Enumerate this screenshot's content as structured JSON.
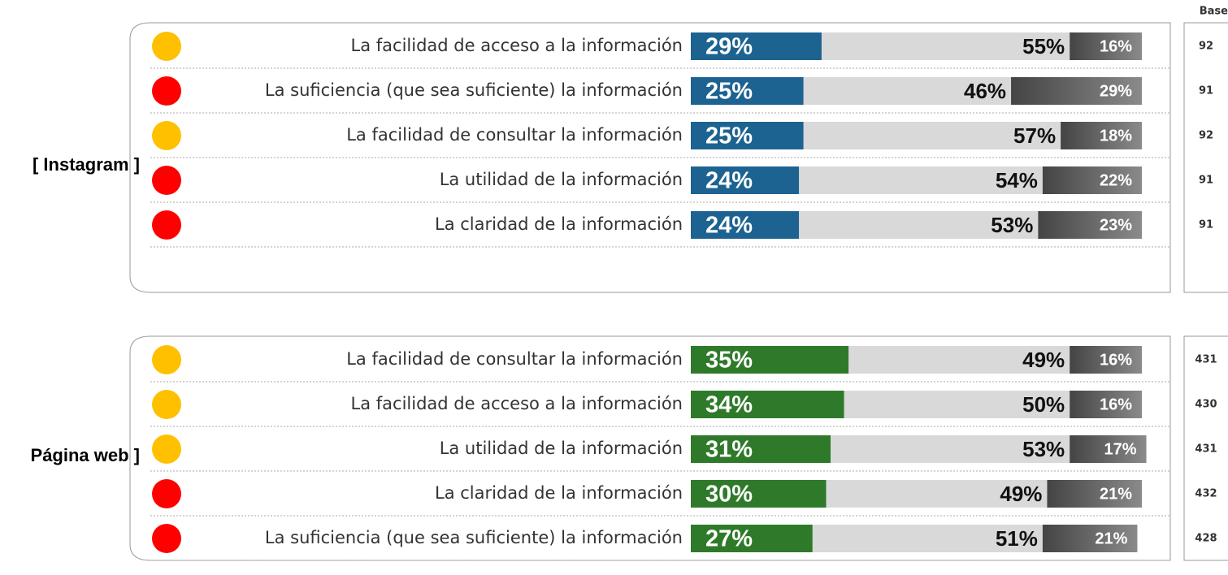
{
  "base_label": "Base",
  "chart_data": [
    {
      "type": "bar",
      "title": "[ Instagram ]",
      "categories": [
        "La facilidad de acceso a la información",
        "La suficiencia (que sea suficiente) la información",
        "La facilidad de consultar la información",
        "La utilidad de la información",
        "La claridad de la información"
      ],
      "dot_colors": [
        "#ffc000",
        "#ff0000",
        "#ffc000",
        "#ff0000",
        "#ff0000"
      ],
      "base": [
        "92",
        "91",
        "92",
        "91",
        "91"
      ],
      "xlim": [
        0,
        100
      ],
      "series": [
        {
          "color": "#1d6391",
          "values": [
            29,
            25,
            25,
            24,
            24
          ],
          "value_labels": [
            "29%",
            "25%",
            "25%",
            "24%",
            "24%"
          ]
        },
        {
          "color": "#d9d9d9",
          "values": [
            55,
            46,
            57,
            54,
            53
          ],
          "value_labels": [
            "55%",
            "46%",
            "57%",
            "54%",
            "53%"
          ]
        },
        {
          "color": "#5e5e5e",
          "values": [
            16,
            29,
            18,
            22,
            23
          ],
          "value_labels": [
            "16%",
            "29%",
            "18%",
            "22%",
            "23%"
          ]
        }
      ]
    },
    {
      "type": "bar",
      "title": "Página web ]",
      "categories": [
        "La facilidad de consultar la información",
        "La facilidad de acceso a la información",
        "La utilidad de la información",
        "La claridad de la información",
        "La suficiencia (que sea suficiente) la información"
      ],
      "dot_colors": [
        "#ffc000",
        "#ffc000",
        "#ffc000",
        "#ff0000",
        "#ff0000"
      ],
      "base": [
        "431",
        "430",
        "431",
        "432",
        "428"
      ],
      "xlim": [
        0,
        100
      ],
      "series": [
        {
          "color": "#2f7a2a",
          "values": [
            35,
            34,
            31,
            30,
            27
          ],
          "value_labels": [
            "35%",
            "34%",
            "31%",
            "30%",
            "27%"
          ]
        },
        {
          "color": "#d9d9d9",
          "values": [
            49,
            50,
            53,
            49,
            51
          ],
          "value_labels": [
            "49%",
            "50%",
            "53%",
            "49%",
            "51%"
          ]
        },
        {
          "color": "#5e5e5e",
          "values": [
            16,
            16,
            17,
            21,
            21
          ],
          "value_labels": [
            "16%",
            "16%",
            "17%",
            "21%",
            "21%"
          ]
        }
      ]
    }
  ]
}
